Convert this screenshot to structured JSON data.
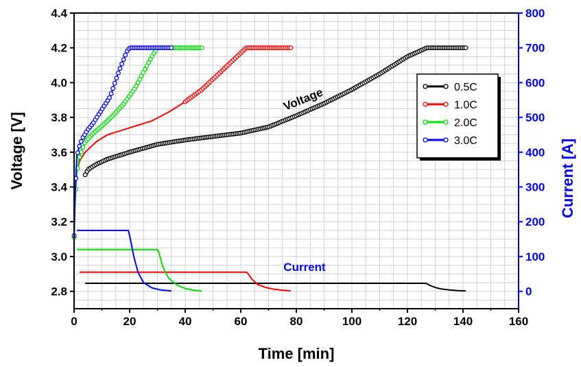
{
  "chart_data": {
    "type": "line",
    "xlabel": "Time [min]",
    "ylabel": "Voltage [V]",
    "y2label": "Current [A]",
    "xlim": [
      0,
      160
    ],
    "ylim": [
      2.7,
      4.4
    ],
    "y2lim": [
      -50,
      800
    ],
    "xticks": [
      "0",
      "20",
      "40",
      "60",
      "80",
      "100",
      "120",
      "140",
      "160"
    ],
    "yticks": [
      "2.8",
      "3.0",
      "3.2",
      "3.4",
      "3.6",
      "3.8",
      "4.0",
      "4.2",
      "4.4"
    ],
    "y2ticks": [
      "0",
      "100",
      "200",
      "300",
      "400",
      "500",
      "600",
      "700",
      "800"
    ],
    "grid": true,
    "legend_position": "top-right",
    "annotations": [
      "Voltage",
      "Current"
    ],
    "colors": {
      "0.5C": "#000000",
      "1.0C": "#ff0000",
      "2.0C": "#00dd00",
      "3.0C": "#0000ff",
      "right_axis": "#0000ff"
    },
    "voltage_series": [
      {
        "name": "0.5C",
        "x": [
          4,
          5,
          8,
          12,
          20,
          30,
          40,
          50,
          60,
          70,
          80,
          90,
          100,
          110,
          120,
          127,
          134,
          141
        ],
        "y": [
          3.47,
          3.5,
          3.53,
          3.56,
          3.6,
          3.645,
          3.67,
          3.69,
          3.71,
          3.745,
          3.81,
          3.88,
          3.96,
          4.05,
          4.15,
          4.2,
          4.2,
          4.2
        ]
      },
      {
        "name": "1.0C",
        "x": [
          1.5,
          2,
          4,
          8,
          12,
          20,
          28,
          34,
          40,
          46,
          52,
          58,
          62,
          66,
          72,
          78
        ],
        "y": [
          3.52,
          3.55,
          3.6,
          3.66,
          3.7,
          3.74,
          3.78,
          3.83,
          3.89,
          3.96,
          4.05,
          4.14,
          4.2,
          4.2,
          4.2,
          4.2
        ],
        "markers_from_x": 40
      },
      {
        "name": "2.0C",
        "x": [
          0,
          0.3,
          1,
          2,
          4,
          7,
          10,
          14,
          18,
          22,
          25,
          28,
          30,
          34,
          40,
          46
        ],
        "y": [
          3.11,
          3.3,
          3.48,
          3.58,
          3.66,
          3.71,
          3.75,
          3.81,
          3.88,
          3.97,
          4.06,
          4.15,
          4.2,
          4.2,
          4.2,
          4.2
        ]
      },
      {
        "name": "3.0C",
        "x": [
          0,
          0.5,
          1,
          2,
          3,
          5,
          7,
          9,
          11,
          13,
          14.5,
          16,
          17.5,
          19,
          20,
          25,
          30,
          35
        ],
        "y": [
          3.12,
          3.4,
          3.58,
          3.64,
          3.68,
          3.73,
          3.77,
          3.82,
          3.87,
          3.92,
          3.99,
          4.06,
          4.12,
          4.18,
          4.2,
          4.2,
          4.2,
          4.2
        ]
      }
    ],
    "current_series": [
      {
        "name": "0.5C",
        "x": [
          4,
          126,
          127,
          128,
          130,
          132,
          135,
          138,
          141
        ],
        "y": [
          23,
          23,
          22,
          17,
          11,
          7,
          4,
          2,
          1
        ]
      },
      {
        "name": "1.0C",
        "x": [
          2,
          62,
          62.5,
          64,
          66,
          69,
          72,
          75,
          78
        ],
        "y": [
          55,
          55,
          52,
          35,
          20,
          11,
          6,
          3,
          1
        ]
      },
      {
        "name": "2.0C",
        "x": [
          1,
          30,
          30.5,
          32,
          34,
          37,
          40,
          43,
          46
        ],
        "y": [
          120,
          120,
          112,
          70,
          38,
          18,
          8,
          3,
          1
        ]
      },
      {
        "name": "3.0C",
        "x": [
          1,
          19.5,
          20,
          21.5,
          23,
          25,
          28,
          31,
          35
        ],
        "y": [
          175,
          175,
          160,
          100,
          55,
          25,
          10,
          4,
          1
        ]
      }
    ]
  }
}
